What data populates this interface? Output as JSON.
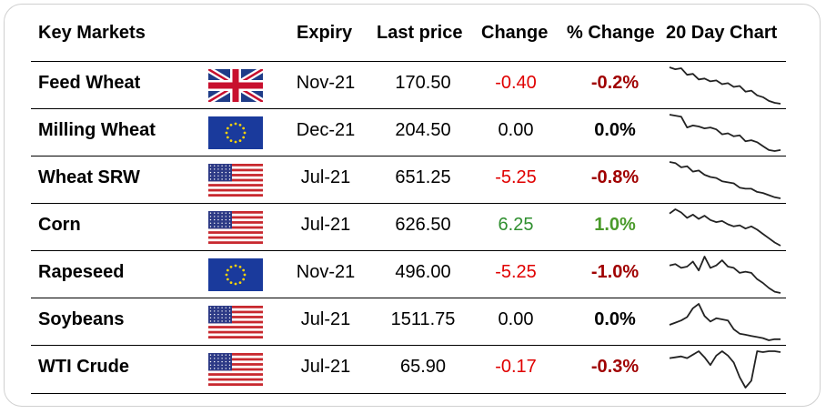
{
  "headers": {
    "key_markets": "Key Markets",
    "expiry": "Expiry",
    "last_price": "Last price",
    "change": "Change",
    "pct_change": "% Change",
    "chart": "20 Day Chart"
  },
  "colors": {
    "negative_change": "#e00000",
    "negative_pct": "#a00000",
    "positive_change": "#2f8f2f",
    "positive_pct": "#4a9a2a",
    "sparkline": "#222222"
  },
  "rows": [
    {
      "name": "Feed Wheat",
      "flag": "uk-flag-icon",
      "expiry": "Nov-21",
      "last_price": "170.50",
      "change": "-0.40",
      "pct_change": "-0.2%",
      "direction": "neg",
      "spark": [
        100,
        98,
        99,
        92,
        93,
        87,
        88,
        85,
        86,
        82,
        83,
        79,
        80,
        74,
        75,
        70,
        68,
        64,
        62,
        61
      ]
    },
    {
      "name": "Milling Wheat",
      "flag": "eu-flag-icon",
      "expiry": "Dec-21",
      "last_price": "204.50",
      "change": "0.00",
      "pct_change": "0.0%",
      "direction": "flat",
      "spark": [
        100,
        99,
        98,
        87,
        89,
        88,
        86,
        87,
        85,
        80,
        81,
        78,
        79,
        73,
        74,
        72,
        68,
        64,
        63,
        64
      ]
    },
    {
      "name": "Wheat SRW",
      "flag": "us-flag-icon",
      "expiry": "Jul-21",
      "last_price": "651.25",
      "change": "-5.25",
      "pct_change": "-0.8%",
      "direction": "neg",
      "spark": [
        100,
        99,
        95,
        96,
        91,
        92,
        88,
        86,
        85,
        82,
        81,
        80,
        76,
        75,
        75,
        72,
        71,
        69,
        67,
        66
      ]
    },
    {
      "name": "Corn",
      "flag": "us-flag-icon",
      "expiry": "Jul-21",
      "last_price": "626.50",
      "change": "6.25",
      "pct_change": "1.0%",
      "direction": "pos",
      "spark": [
        96,
        100,
        97,
        92,
        95,
        91,
        94,
        90,
        88,
        89,
        86,
        84,
        85,
        82,
        84,
        81,
        77,
        73,
        69,
        66
      ]
    },
    {
      "name": "Rapeseed",
      "flag": "eu-flag-icon",
      "expiry": "Nov-21",
      "last_price": "496.00",
      "change": "-5.25",
      "pct_change": "-1.0%",
      "direction": "neg",
      "spark": [
        90,
        91,
        88,
        89,
        93,
        86,
        97,
        88,
        90,
        94,
        89,
        88,
        84,
        85,
        84,
        79,
        76,
        72,
        69,
        68
      ]
    },
    {
      "name": "Soybeans",
      "flag": "us-flag-icon",
      "expiry": "Jul-21",
      "last_price": "1511.75",
      "change": "0.00",
      "pct_change": "0.0%",
      "direction": "flat",
      "spark": [
        78,
        80,
        82,
        85,
        93,
        97,
        86,
        81,
        84,
        83,
        82,
        74,
        70,
        69,
        68,
        67,
        66,
        64,
        65,
        65
      ]
    },
    {
      "name": "WTI Crude",
      "flag": "us-flag-icon",
      "expiry": "Jul-21",
      "last_price": "65.90",
      "change": "-0.17",
      "pct_change": "-0.3%",
      "direction": "neg",
      "spark": [
        92,
        93,
        94,
        92,
        96,
        100,
        93,
        84,
        95,
        100,
        95,
        87,
        70,
        58,
        66,
        100,
        99,
        100,
        100,
        99
      ]
    }
  ]
}
